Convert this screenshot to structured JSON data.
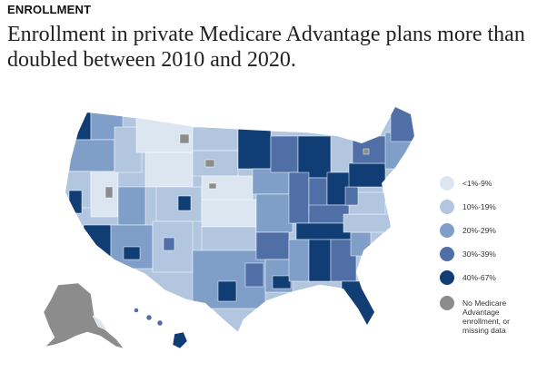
{
  "header": {
    "eyebrow": "ENROLLMENT",
    "headline": "Enrollment in private Medicare Advantage plans more than doubled between 2010 and 2020."
  },
  "map": {
    "colors": {
      "c1": "#dce6f1",
      "c2": "#b3c6e0",
      "c3": "#7f9fc9",
      "c4": "#4f6fa6",
      "c5": "#0f3d74",
      "nodata": "#8c8c8c",
      "border": "#ffffff"
    }
  },
  "legend": {
    "items": [
      {
        "label": "<1%-9%",
        "color": "#dce6f1"
      },
      {
        "label": "10%-19%",
        "color": "#b3c6e0"
      },
      {
        "label": "20%-29%",
        "color": "#7f9fc9"
      },
      {
        "label": "30%-39%",
        "color": "#4f6fa6"
      },
      {
        "label": "40%-67%",
        "color": "#0f3d74"
      },
      {
        "label": "No Medicare Advantage enrollment, or missing data",
        "color": "#8c8c8c"
      }
    ]
  }
}
